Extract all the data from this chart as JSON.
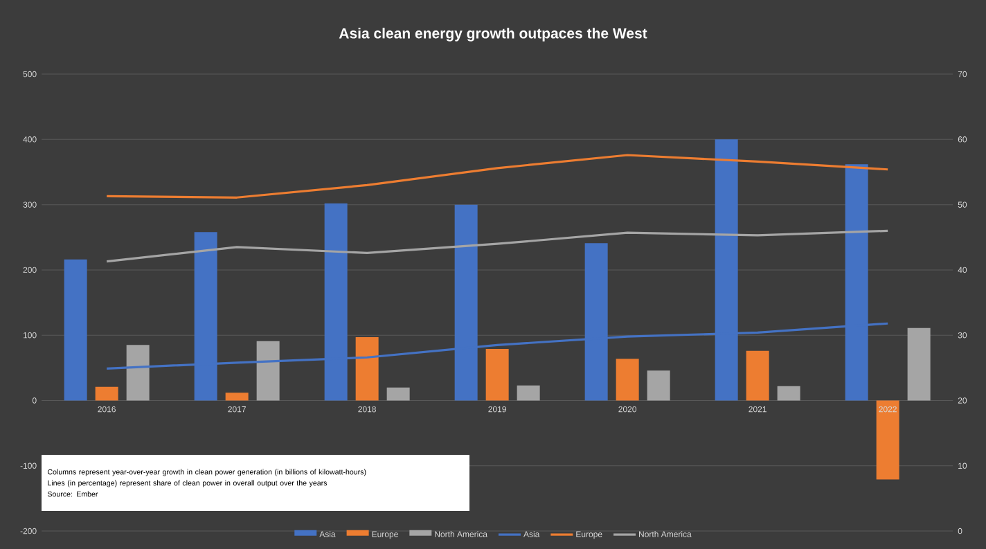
{
  "chart_data": {
    "type": "bar",
    "title": "Asia clean energy growth outpaces the West",
    "categories": [
      "2016",
      "2017",
      "2018",
      "2019",
      "2020",
      "2021",
      "2022"
    ],
    "series": [
      {
        "name": "Asia",
        "color": "#4472c4",
        "values": [
          216,
          258,
          302,
          300,
          241,
          400,
          362
        ]
      },
      {
        "name": "Europe",
        "color": "#ed7d31",
        "values": [
          21,
          12,
          97,
          79,
          64,
          76,
          -121
        ]
      },
      {
        "name": "North America",
        "color": "#a5a5a5",
        "values": [
          85,
          91,
          20,
          23,
          46,
          22,
          111
        ]
      },
      {
        "name": "Asia",
        "type": "line",
        "axis": "y2",
        "color": "#4472c4",
        "values": [
          24.9,
          25.8,
          26.6,
          28.5,
          29.8,
          30.4,
          31.8
        ]
      },
      {
        "name": "Europe",
        "type": "line",
        "axis": "y2",
        "color": "#ed7d31",
        "values": [
          51.3,
          51.1,
          53.0,
          55.6,
          57.6,
          56.6,
          55.4
        ]
      },
      {
        "name": "North America",
        "type": "line",
        "axis": "y2",
        "color": "#a5a5a5",
        "values": [
          41.3,
          43.5,
          42.6,
          44.0,
          45.7,
          45.3,
          46.0
        ]
      }
    ],
    "ylim": [
      -200,
      500
    ],
    "yticks": [
      -200,
      -100,
      0,
      100,
      200,
      300,
      400,
      500
    ],
    "y2lim": [
      0,
      70
    ],
    "y2ticks": [
      0,
      10,
      20,
      30,
      40,
      50,
      60,
      70
    ],
    "grid": "y",
    "legend": "bottom",
    "annotations": [
      "Columns represent year-over-year growth in clean power generation (in billions of kilowatt-hours)",
      "Lines (in percentage) represent share of clean power in overall output over the years",
      "Source: Ember"
    ]
  }
}
